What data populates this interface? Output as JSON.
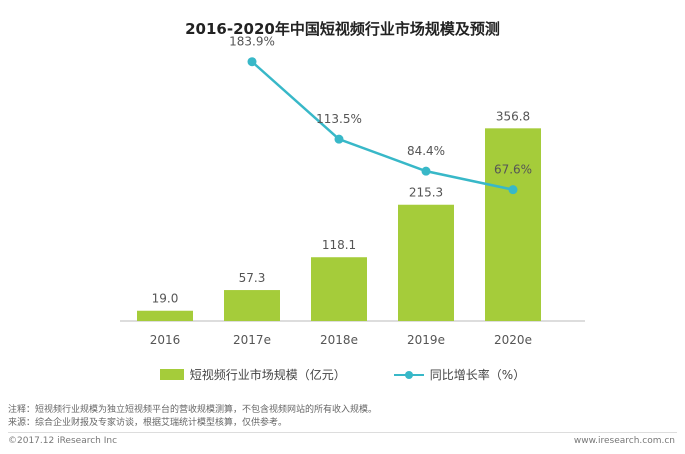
{
  "chart_data": {
    "type": "bar",
    "title": "2016-2020年中国短视频行业市场规模及预测",
    "categories": [
      "2016",
      "2017e",
      "2018e",
      "2019e",
      "2020e"
    ],
    "series": [
      {
        "name": "短视频行业市场规模（亿元）",
        "type": "bar",
        "values": [
          19.0,
          57.3,
          118.1,
          215.3,
          356.8
        ],
        "labels": [
          "19.0",
          "57.3",
          "118.1",
          "215.3",
          "356.8"
        ],
        "color": "#a5cc3a"
      },
      {
        "name": "同比增长率（%）",
        "type": "line",
        "values": [
          null,
          183.9,
          113.5,
          84.4,
          67.6
        ],
        "labels": [
          "",
          "183.9%",
          "113.5%",
          "84.4%",
          "67.6%"
        ],
        "color": "#38b8c8"
      }
    ],
    "xlabel": "",
    "ylabel": "",
    "ylim": [
      0,
      400
    ],
    "y2lim": [
      0,
      200
    ],
    "grid": false,
    "legend_position": "bottom"
  },
  "notes": {
    "line1": "注释：短视频行业规模为独立短视频平台的营收规模测算，不包含视频网站的所有收入规模。",
    "line2": "来源：综合企业财报及专家访谈，根据艾瑞统计模型核算，仅供参考。"
  },
  "footer": {
    "copyright": "©2017.12 iResearch Inc",
    "website": "www.iresearch.com.cn"
  }
}
